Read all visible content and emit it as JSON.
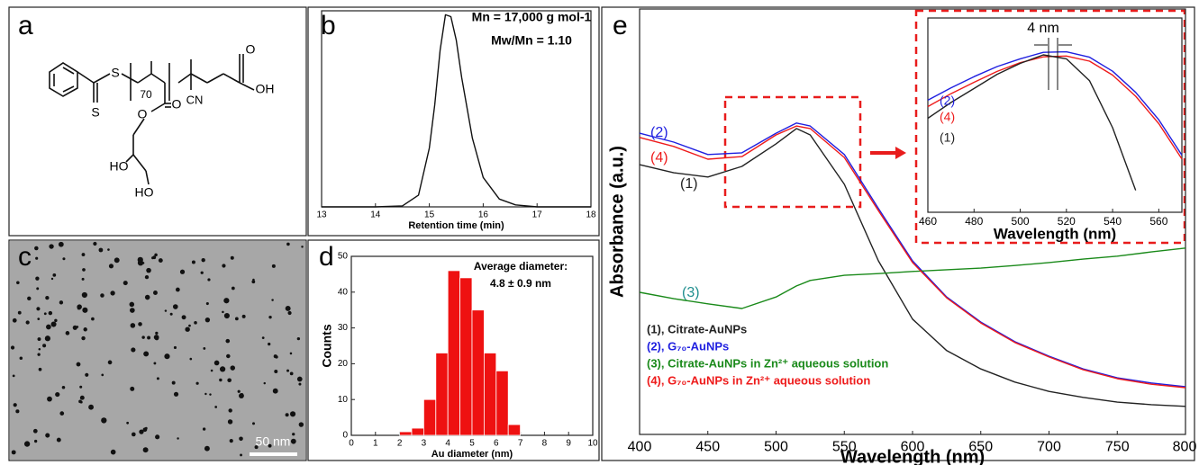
{
  "labels": [
    "a",
    "b",
    "c",
    "d",
    "e"
  ],
  "structure": {
    "atoms": [
      "S",
      "70",
      "O",
      "OH",
      "CN",
      "S",
      "O",
      "O",
      "HO",
      "HO"
    ]
  },
  "tem": {
    "scale_bar": "50 nm"
  },
  "chart_data": [
    {
      "type": "line",
      "xlabel": "Retention time (min)",
      "annotations": [
        "Mn = 17,000 g mol-1",
        "Mw/Mn = 1.10"
      ],
      "x": [
        13,
        14,
        14.5,
        14.8,
        15,
        15.1,
        15.2,
        15.3,
        15.4,
        15.5,
        15.6,
        15.8,
        16,
        16.3,
        16.6,
        17,
        18
      ],
      "series": [
        {
          "color": "#111111",
          "values": [
            0,
            0,
            0.5,
            6,
            30,
            52,
            80,
            98,
            97,
            85,
            66,
            35,
            15,
            4,
            1,
            0,
            0
          ]
        }
      ],
      "xlim": [
        13,
        18
      ],
      "xticks": [
        13,
        14,
        15,
        16,
        17,
        18
      ],
      "ylim": [
        0,
        100
      ]
    },
    {
      "type": "histogram",
      "xlabel": "Au diameter (nm)",
      "ylabel": "Counts",
      "annotations": [
        "Average diameter:",
        "4.8 ± 0.9 nm"
      ],
      "bins": [
        2,
        2.5,
        3,
        3.5,
        4,
        4.5,
        5,
        5.5,
        6,
        6.5,
        7
      ],
      "values": [
        1,
        2,
        10,
        23,
        46,
        44,
        35,
        23,
        18,
        3
      ],
      "color": "#ee1111",
      "xlim": [
        0,
        10
      ],
      "xticks": [
        0,
        1,
        2,
        3,
        4,
        5,
        6,
        7,
        8,
        9,
        10
      ],
      "ylim": [
        0,
        50
      ],
      "yticks": [
        0,
        10,
        20,
        30,
        40,
        50
      ]
    },
    {
      "type": "line",
      "xlabel": "Wavelength (nm)",
      "ylabel": "Absorbance (a.u.)",
      "x": [
        400,
        425,
        450,
        475,
        500,
        515,
        525,
        550,
        575,
        600,
        625,
        650,
        675,
        700,
        725,
        750,
        775,
        800
      ],
      "series": [
        {
          "name": "(1), Citrate-AuNPs",
          "color": "#222222",
          "values": [
            63.4,
            61.5,
            60.5,
            63,
            68.3,
            71.9,
            70.4,
            58.8,
            40.8,
            27.1,
            19.7,
            15.4,
            12.3,
            10.1,
            8.7,
            7.6,
            7,
            6.6
          ]
        },
        {
          "name": "(2), G₇₀-AuNPs",
          "color": "#1f1fe0",
          "values": [
            70.8,
            68.7,
            65.8,
            66.2,
            70.8,
            73.2,
            72.5,
            65.8,
            53.1,
            40.8,
            32.3,
            26.4,
            21.8,
            18.4,
            15.4,
            13.3,
            12.1,
            11.2
          ]
        },
        {
          "name": "(3), Citrate-AuNPs in Zn²⁺ aqueous solution",
          "color": "#1a8a1a",
          "values": [
            33.4,
            31.9,
            30.7,
            29.6,
            32.3,
            34.9,
            36.2,
            37.4,
            37.8,
            38.3,
            38.7,
            39.1,
            39.7,
            40.4,
            41.2,
            41.9,
            42.9,
            43.8
          ]
        },
        {
          "name": "(4), G₇₀-AuNPs in Zn²⁺ aqueous solution",
          "color": "#ee1b1b",
          "values": [
            69.8,
            67.7,
            64.7,
            65.3,
            70.4,
            72.5,
            71.9,
            65.1,
            52.6,
            40.4,
            32.1,
            26.2,
            21.6,
            18.2,
            15.2,
            13.1,
            11.8,
            11
          ]
        }
      ],
      "curve_labels": [
        {
          "text": "(2)",
          "color": "#1f1fe0"
        },
        {
          "text": "(4)",
          "color": "#ee1b1b"
        },
        {
          "text": "(1)",
          "color": "#222222"
        },
        {
          "text": "(3)",
          "color": "#1f8f8f"
        }
      ],
      "xlim": [
        400,
        800
      ],
      "xticks": [
        400,
        450,
        500,
        550,
        600,
        650,
        700,
        750,
        800
      ],
      "ylim": [
        0,
        100
      ]
    },
    {
      "type": "line",
      "xlabel": "Wavelength (nm)",
      "annotations": [
        "4 nm"
      ],
      "x": [
        460,
        470,
        480,
        490,
        500,
        510,
        520,
        530,
        540,
        550,
        560,
        570
      ],
      "series": [
        {
          "color": "#1f1fe0",
          "values": [
            57.7,
            64,
            69.8,
            75,
            79,
            82.3,
            82.6,
            79.8,
            72.6,
            61.7,
            47.6,
            29.4
          ]
        },
        {
          "color": "#ee1b1b",
          "values": [
            54.4,
            61,
            66.9,
            72.5,
            77,
            80,
            80.4,
            77.8,
            70.6,
            59.7,
            45.6,
            27.4
          ]
        },
        {
          "color": "#222222",
          "values": [
            48.4,
            56.5,
            63.7,
            71,
            76.6,
            81,
            79,
            67.7,
            43.5,
            11.3,
            null,
            null
          ]
        }
      ],
      "curve_labels": [
        {
          "text": "(2)",
          "color": "#1f1fe0"
        },
        {
          "text": "(4)",
          "color": "#ee1b1b"
        },
        {
          "text": "(1)",
          "color": "#222222"
        }
      ],
      "xlim": [
        460,
        570
      ],
      "xticks": [
        460,
        480,
        500,
        520,
        540,
        560
      ],
      "ylim": [
        0,
        100
      ]
    }
  ]
}
